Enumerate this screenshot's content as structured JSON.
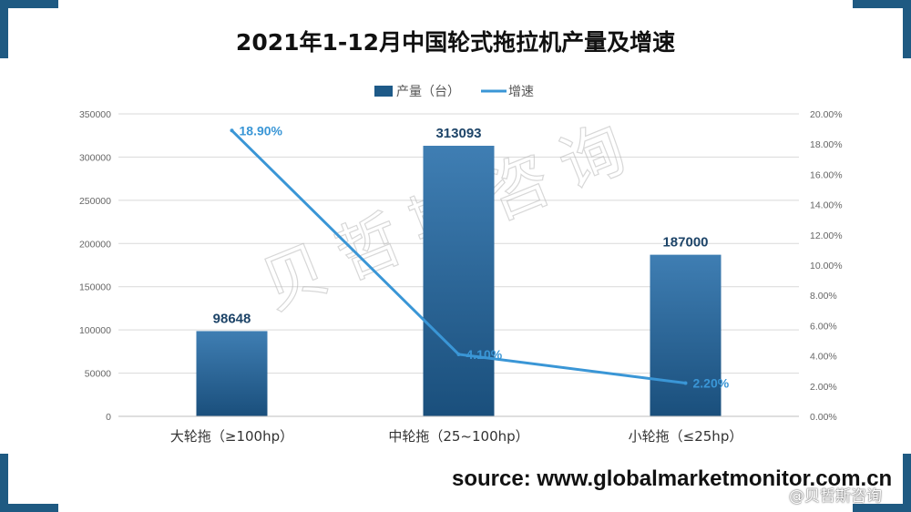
{
  "colors": {
    "bar": "#1e5a88",
    "bar_light": "#3f7eb3",
    "line": "#3a96d6",
    "accent": "#1f5a82"
  },
  "chart_data": {
    "type": "bar",
    "title": "2021年1-12月中国轮式拖拉机产量及增速",
    "categories": [
      "大轮拖（≥100hp）",
      "中轮拖（25~100hp）",
      "小轮拖（≤25hp）"
    ],
    "series": [
      {
        "name": "产量（台）",
        "type": "bar",
        "axis": "left",
        "values": [
          98648,
          313093,
          187000
        ],
        "labels": [
          "98648",
          "313093",
          "187000"
        ]
      },
      {
        "name": "增速",
        "type": "line",
        "axis": "right",
        "values": [
          18.9,
          4.1,
          2.2
        ],
        "labels": [
          "18.90%",
          "4.10%",
          "2.20%"
        ]
      }
    ],
    "y_left": {
      "ylim": [
        0,
        350000
      ],
      "ticks": [
        "0",
        "50000",
        "100000",
        "150000",
        "200000",
        "250000",
        "300000",
        "350000"
      ]
    },
    "y_right": {
      "ylim": [
        0,
        20
      ],
      "ticks": [
        "0.00%",
        "2.00%",
        "4.00%",
        "6.00%",
        "8.00%",
        "10.00%",
        "12.00%",
        "14.00%",
        "16.00%",
        "18.00%",
        "20.00%"
      ]
    },
    "legend_position": "top",
    "grid": true
  },
  "watermark": "贝哲斯咨询",
  "source": "source: www.globalmarketmonitor.com.cn",
  "footer_watermark": "@贝哲斯咨询"
}
